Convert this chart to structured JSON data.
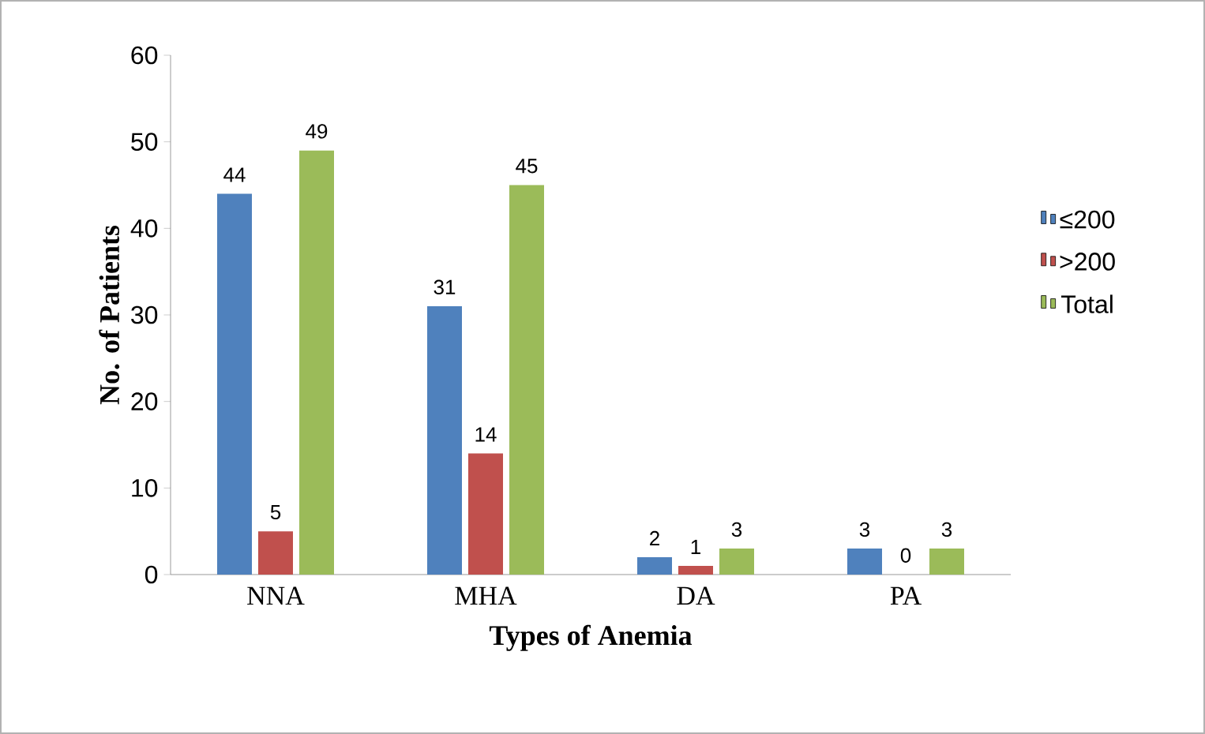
{
  "chart_data": {
    "type": "bar",
    "xlabel": "Types of Anemia",
    "ylabel": "No. of Patients",
    "categories": [
      "NNA",
      "MHA",
      "DA",
      "PA"
    ],
    "series": [
      {
        "name": "≤200",
        "color": "#4f81bd",
        "values": [
          44,
          31,
          2,
          3
        ]
      },
      {
        "name": ">200",
        "color": "#c0504d",
        "values": [
          5,
          14,
          1,
          0
        ]
      },
      {
        "name": "Total",
        "color": "#9bbb59",
        "values": [
          49,
          45,
          3,
          3
        ]
      }
    ],
    "ylim": [
      0,
      60
    ],
    "yticks": [
      0,
      10,
      20,
      30,
      40,
      50,
      60
    ],
    "data_labels": true,
    "legend": "right",
    "grid": false
  }
}
